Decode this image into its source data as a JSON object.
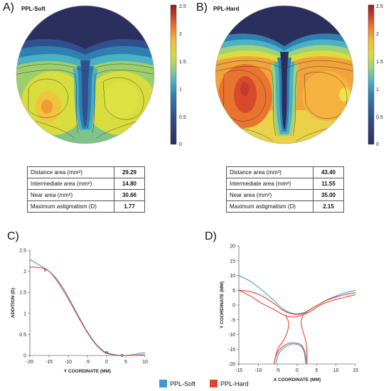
{
  "panels": {
    "a": {
      "letter": "A)",
      "title": "PPL-Soft"
    },
    "b": {
      "letter": "B)",
      "title": "PPL-Hard"
    },
    "c": {
      "letter": "C)"
    },
    "d": {
      "letter": "D)"
    }
  },
  "colorbar": {
    "ticks": [
      "2.5",
      "2",
      "1.5",
      "1",
      "0.5",
      "0"
    ],
    "colors": [
      "#2b2f5e",
      "#31508f",
      "#2f7fb0",
      "#49b3c4",
      "#9fd07a",
      "#d9dc3b",
      "#f3b73a",
      "#e8742e",
      "#c43a2c",
      "#8d1f24"
    ]
  },
  "tables": {
    "a": {
      "rows": [
        {
          "label": "Distance area (mm²)",
          "value": "29.29"
        },
        {
          "label": "Intermediate area (mm²)",
          "value": "14.80"
        },
        {
          "label": "Near area (mm²)",
          "value": "30.66"
        },
        {
          "label": "Maximum astigmatism (D)",
          "value": "1.77"
        }
      ]
    },
    "b": {
      "rows": [
        {
          "label": "Distance area (mm²)",
          "value": "43.40"
        },
        {
          "label": "Intermediate area (mm²)",
          "value": "11.55"
        },
        {
          "label": "Near area (mm²)",
          "value": "35.00"
        },
        {
          "label": "Maximum astigmatism (D)",
          "value": "2.15"
        }
      ]
    }
  },
  "chart_data": [
    {
      "type": "line",
      "panel": "C",
      "xlabel": "Y COORDINATE (MM)",
      "ylabel": "ADDITION (D)",
      "xlim": [
        -20,
        10
      ],
      "ylim": [
        0,
        2.5
      ],
      "xticks": [
        "-20",
        "-15",
        "-10",
        "-5",
        "0",
        "5",
        "10"
      ],
      "yticks": [
        "0",
        "0.5",
        "1",
        "1.5",
        "2",
        "2.5"
      ],
      "series": [
        {
          "name": "PPL-Soft",
          "color": "#3a9ad9",
          "x": [
            -20,
            -17,
            -15,
            -13,
            -11,
            -9,
            -7,
            -5,
            -3,
            -1,
            0,
            2,
            4,
            6,
            8,
            10
          ],
          "y": [
            2.28,
            2.12,
            2.0,
            1.82,
            1.55,
            1.22,
            0.88,
            0.56,
            0.3,
            0.12,
            0.07,
            0.02,
            0.0,
            0.01,
            0.04,
            0.07
          ]
        },
        {
          "name": "PPL-Hard",
          "color": "#e2452b",
          "x": [
            -20,
            -17,
            -15,
            -13,
            -11,
            -9,
            -7,
            -5,
            -3,
            -1,
            0,
            2,
            4,
            6,
            8,
            10
          ],
          "y": [
            2.1,
            2.08,
            2.0,
            1.78,
            1.5,
            1.18,
            0.85,
            0.54,
            0.28,
            0.1,
            0.05,
            0.01,
            0.0,
            0.0,
            0.01,
            0.02
          ]
        }
      ]
    },
    {
      "type": "line",
      "panel": "D",
      "xlabel": "X COORDINATE (MM)",
      "ylabel": "Y COORDINATE (MM)",
      "xlim": [
        -15,
        15
      ],
      "ylim": [
        -20,
        20
      ],
      "xticks": [
        "-15",
        "-10",
        "-5",
        "0",
        "5",
        "10",
        "15"
      ],
      "yticks": [
        "20",
        "15",
        "10",
        "5",
        "0",
        "-5",
        "-10",
        "-15",
        "-20"
      ],
      "series": [
        {
          "name": "PPL-Soft upper left",
          "color": "#3a9ad9",
          "x": [
            -15,
            -12,
            -9,
            -6,
            -4,
            -2,
            0,
            2
          ],
          "y": [
            10,
            8,
            5,
            1.5,
            -1,
            -2.5,
            -3,
            -2.5
          ]
        },
        {
          "name": "PPL-Soft upper right",
          "color": "#3a9ad9",
          "x": [
            2,
            4,
            6,
            8,
            10,
            12,
            15
          ],
          "y": [
            -2.5,
            -1,
            0.5,
            2,
            3,
            4,
            5
          ]
        },
        {
          "name": "PPL-Hard upper left",
          "color": "#e2452b",
          "x": [
            -15,
            -12,
            -9,
            -6,
            -4,
            -2,
            0,
            2
          ],
          "y": [
            5,
            4.5,
            3,
            0.5,
            -1.5,
            -2.8,
            -3.2,
            -2.8
          ]
        },
        {
          "name": "PPL-Hard upper right",
          "color": "#e2452b",
          "x": [
            2,
            4,
            6,
            8,
            10,
            12,
            15
          ],
          "y": [
            -2.8,
            -1,
            0.5,
            1.8,
            2.7,
            3.4,
            4.2
          ]
        },
        {
          "name": "PPL-Hard lower left",
          "color": "#e2452b",
          "x": [
            -15,
            -12,
            -9,
            -6,
            -4,
            -2,
            0
          ],
          "y": [
            5,
            3,
            0.5,
            -1.5,
            -3,
            -4,
            -4
          ]
        },
        {
          "name": "PPL-Hard lower right",
          "color": "#e2452b",
          "x": [
            0,
            3,
            6,
            9,
            12,
            15
          ],
          "y": [
            -4,
            -2.5,
            0,
            1.5,
            2.5,
            3.5
          ]
        },
        {
          "name": "Corridor left",
          "color": "#e2452b",
          "x": [
            -3,
            -2.2,
            -2.5,
            -3.5,
            -5,
            -6
          ],
          "y": [
            -3.5,
            -6,
            -9,
            -12,
            -15,
            -20
          ]
        },
        {
          "name": "Corridor right",
          "color": "#e2452b",
          "x": [
            1.5,
            1,
            1.5,
            2.2,
            2.5,
            2.5
          ],
          "y": [
            -3.5,
            -6,
            -9,
            -12,
            -16,
            -20
          ]
        },
        {
          "name": "Lower arc",
          "color": "#e2452b",
          "x": [
            -6,
            -5,
            -3,
            -1,
            1,
            2,
            2.5
          ],
          "y": [
            -20,
            -16,
            -13.5,
            -12.8,
            -13.5,
            -16,
            -20
          ]
        },
        {
          "name": "Lower arc soft",
          "color": "#3a9ad9",
          "x": [
            -5.5,
            -4.5,
            -2.5,
            -1,
            0.8,
            1.8,
            2.2
          ],
          "y": [
            -20,
            -16,
            -13.8,
            -13.2,
            -13.8,
            -16,
            -20
          ]
        }
      ]
    }
  ],
  "legend": [
    {
      "label": "PPL-Soft",
      "color": "#3a9ad9"
    },
    {
      "label": "PPL-Hard",
      "color": "#e2452b"
    }
  ]
}
